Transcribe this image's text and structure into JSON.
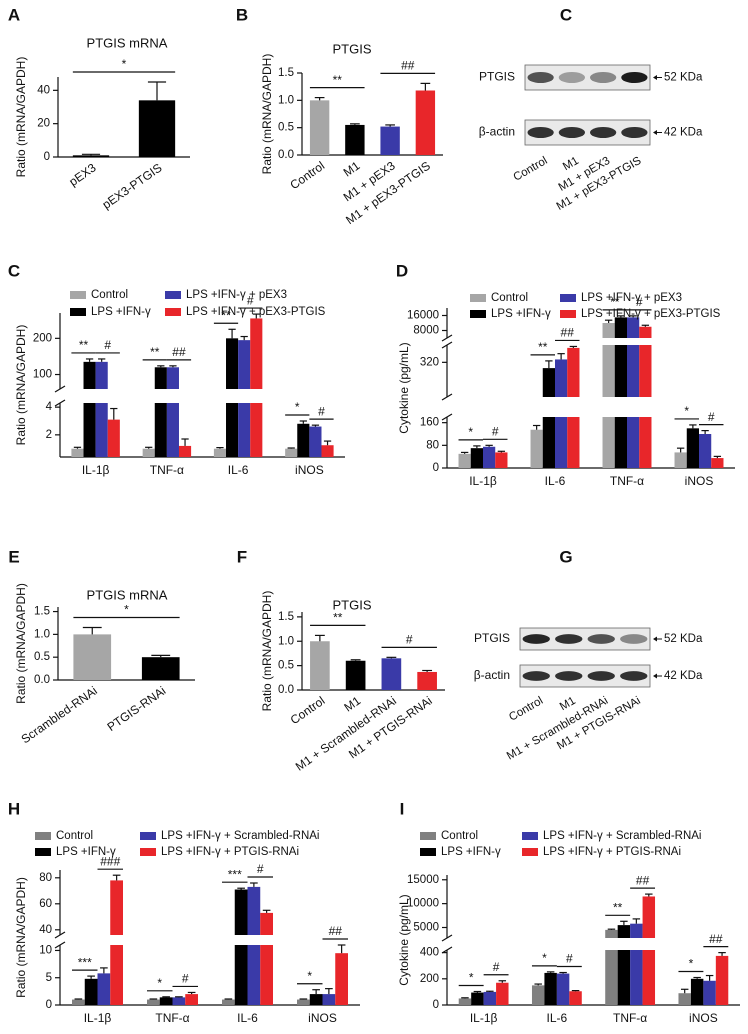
{
  "chart_data": [
    {
      "type": "bar",
      "panel": "A",
      "title": "PTGIS mRNA",
      "ylabel": "Ratio (mRNA/GAPDH)",
      "categories": [
        "pEX3",
        "pEX3-PTGIS"
      ],
      "values": [
        1,
        34
      ],
      "errors": [
        0.6,
        11
      ],
      "colors": [
        "#000000",
        "#000000"
      ],
      "ylim": [
        0,
        48
      ],
      "yticks": [
        0,
        20,
        40
      ],
      "annotations": [
        "*"
      ]
    },
    {
      "type": "bar",
      "panel": "B",
      "title": "PTGIS",
      "ylabel": "Ratio (mRNA/GAPDH)",
      "categories": [
        "Control",
        "M1",
        "M1 + pEX3",
        "M1 + pEX3-PTGIS"
      ],
      "values": [
        1.0,
        0.55,
        0.52,
        1.18
      ],
      "errors": [
        0.05,
        0.02,
        0.03,
        0.13
      ],
      "colors": [
        "#a6a6a6",
        "#000000",
        "#3a3aa8",
        "#e8262a"
      ],
      "ylim": [
        0,
        1.5
      ],
      "yticks": [
        {
          "value": 0,
          "label": "0.0"
        },
        {
          "value": 0.5,
          "label": "0.5"
        },
        {
          "value": 1,
          "label": "1.0"
        },
        {
          "value": 1.5,
          "label": "1.5"
        }
      ],
      "annotations": [
        "**",
        "##"
      ]
    },
    {
      "type": "blot",
      "panel": "C",
      "rows": [
        "PTGIS",
        "β-actin"
      ],
      "sizes": [
        "52 KDa",
        "42 KDa"
      ],
      "lanes": [
        "Control",
        "M1",
        "M1 + pEX3",
        "M1 + pEX3-PTGIS"
      ]
    },
    {
      "type": "grouped",
      "panel": "C",
      "ylabel": "Ratio (mRNA/GAPDH)",
      "categories": [
        "IL-1β",
        "TNF-α",
        "IL-6",
        "iNOS"
      ],
      "segments": [
        {
          "ylim": [
            0.4,
            4.3
          ],
          "yticks": [
            2,
            4
          ]
        },
        {
          "ylim": [
            60,
            270
          ],
          "yticks": [
            100,
            200
          ]
        }
      ],
      "series": [
        {
          "name": "Control",
          "color": "#a6a6a6",
          "values": [
            1,
            1,
            1,
            1
          ],
          "errors": [
            0.1,
            0.1,
            0.08,
            0.05
          ]
        },
        {
          "name": "LPS +IFN-γ",
          "color": "#000000",
          "values": [
            135,
            120,
            200,
            2.8
          ],
          "errors": [
            8,
            4,
            25,
            0.2
          ]
        },
        {
          "name": "LPS +IFN-γ + pEX3",
          "color": "#3a3aa8",
          "values": [
            135,
            120,
            195,
            2.6
          ],
          "errors": [
            8,
            4,
            10,
            0.1
          ]
        },
        {
          "name": "LPS +IFN-γ + pEX3-PTGIS",
          "color": "#e8262a",
          "values": [
            3.1,
            1.2,
            255,
            1.25
          ],
          "errors": [
            0.8,
            0.5,
            12,
            0.3
          ]
        }
      ],
      "significance": [
        [
          "**",
          "#"
        ],
        [
          "**",
          "##"
        ],
        [
          "**",
          "#"
        ],
        [
          "*",
          "#"
        ]
      ]
    },
    {
      "type": "grouped",
      "panel": "D",
      "ylabel": "Cytokine (pg/mL)",
      "categories": [
        "IL-1β",
        "IL-6",
        "TNF-α",
        "iNOS"
      ],
      "segments": [
        {
          "ylim": [
            0,
            180
          ],
          "yticks": [
            0,
            80,
            160
          ]
        },
        {
          "ylim": [
            200,
            380
          ],
          "yticks": [
            320
          ]
        },
        {
          "ylim": [
            4000,
            20000
          ],
          "yticks": [
            8000,
            16000
          ]
        }
      ],
      "series": [
        {
          "name": "Control",
          "color": "#a6a6a6",
          "values": [
            50,
            135,
            12000,
            55
          ],
          "errors": [
            5,
            15,
            1500,
            15
          ]
        },
        {
          "name": "LPS +IFN-γ",
          "color": "#000000",
          "values": [
            70,
            300,
            15000,
            140
          ],
          "errors": [
            8,
            25,
            800,
            12
          ]
        },
        {
          "name": "LPS +IFN-γ + pEX3",
          "color": "#3a3aa8",
          "values": [
            75,
            330,
            15000,
            120
          ],
          "errors": [
            5,
            20,
            800,
            12
          ]
        },
        {
          "name": "LPS +IFN-γ + pEX3-PTGIS",
          "color": "#e8262a",
          "values": [
            55,
            370,
            10000,
            35
          ],
          "errors": [
            4,
            5,
            800,
            6
          ]
        }
      ],
      "significance": [
        [
          "*",
          "#"
        ],
        [
          "**",
          "##"
        ],
        [
          "**",
          "#"
        ],
        [
          "*",
          "#"
        ]
      ]
    },
    {
      "type": "bar",
      "panel": "E",
      "title": "PTGIS mRNA",
      "ylabel": "Ratio (mRNA/GAPDH)",
      "categories": [
        "Scrambled-RNAi",
        "PTGIS-RNAi"
      ],
      "values": [
        1.0,
        0.5
      ],
      "errors": [
        0.15,
        0.04
      ],
      "colors": [
        "#a6a6a6",
        "#000000"
      ],
      "ylim": [
        0,
        1.6
      ],
      "yticks": [
        {
          "value": 0,
          "label": "0.0"
        },
        {
          "value": 0.5,
          "label": "0.5"
        },
        {
          "value": 1,
          "label": "1.0"
        },
        {
          "value": 1.5,
          "label": "1.5"
        }
      ],
      "annotations": [
        "*"
      ]
    },
    {
      "type": "bar",
      "panel": "F",
      "title": "PTGIS",
      "ylabel": "Ratio (mRNA/GAPDH)",
      "categories": [
        "Control",
        "M1",
        "M1 + Scrambled-RNAi",
        "M1 + PTGIS-RNAi"
      ],
      "values": [
        1.0,
        0.6,
        0.65,
        0.37
      ],
      "errors": [
        0.12,
        0.02,
        0.02,
        0.03
      ],
      "colors": [
        "#a6a6a6",
        "#000000",
        "#3a3aa8",
        "#e8262a"
      ],
      "ylim": [
        0,
        1.6
      ],
      "yticks": [
        {
          "value": 0,
          "label": "0.0"
        },
        {
          "value": 0.5,
          "label": "0.5"
        },
        {
          "value": 1,
          "label": "1.0"
        },
        {
          "value": 1.5,
          "label": "1.5"
        }
      ],
      "annotations": [
        "**",
        "#"
      ]
    },
    {
      "type": "blot",
      "panel": "G",
      "rows": [
        "PTGIS",
        "β-actin"
      ],
      "sizes": [
        "52 KDa",
        "42 KDa"
      ],
      "lanes": [
        "Control",
        "M1",
        "M1 + Scrambled-RNAi",
        "M1 + PTGIS-RNAi"
      ]
    },
    {
      "type": "grouped",
      "panel": "H",
      "ylabel": "Ratio (mRNA/GAPDH)",
      "categories": [
        "IL-1β",
        "TNF-α",
        "IL-6",
        "iNOS"
      ],
      "segments": [
        {
          "ylim": [
            0,
            11
          ],
          "yticks": [
            0,
            5,
            10
          ]
        },
        {
          "ylim": [
            36,
            86
          ],
          "yticks": [
            40,
            60,
            80
          ]
        }
      ],
      "series": [
        {
          "name": "Control",
          "color": "#808080",
          "values": [
            1,
            1,
            1,
            1
          ],
          "errors": [
            0.1,
            0.1,
            0.1,
            0.1
          ]
        },
        {
          "name": "LPS +IFN-γ",
          "color": "#000000",
          "values": [
            4.8,
            1.4,
            71,
            2
          ],
          "errors": [
            0.5,
            0.1,
            1,
            0.8
          ]
        },
        {
          "name": "LPS +IFN-γ + Scrambled-RNAi",
          "color": "#3a3aa8",
          "values": [
            5.8,
            1.4,
            73,
            2
          ],
          "errors": [
            1,
            0.1,
            3,
            1
          ]
        },
        {
          "name": "LPS +IFN-γ + PTGIS-RNAi",
          "color": "#e8262a",
          "values": [
            78,
            2,
            53,
            9.5
          ],
          "errors": [
            4,
            0.3,
            2,
            2
          ]
        }
      ],
      "significance": [
        [
          "***",
          "###"
        ],
        [
          "*",
          "#"
        ],
        [
          "***",
          "#"
        ],
        [
          "*",
          "##"
        ]
      ]
    },
    {
      "type": "grouped",
      "panel": "I",
      "ylabel": "Cytokine (pg/mL)",
      "categories": [
        "IL-1β",
        "IL-6",
        "TNF-α",
        "iNOS"
      ],
      "segments": [
        {
          "ylim": [
            0,
            420
          ],
          "yticks": [
            0,
            200,
            400
          ]
        },
        {
          "ylim": [
            2800,
            16000
          ],
          "yticks": [
            5000,
            10000,
            15000
          ]
        }
      ],
      "series": [
        {
          "name": "Control",
          "color": "#808080",
          "values": [
            50,
            150,
            4500,
            90
          ],
          "errors": [
            5,
            10,
            150,
            30
          ]
        },
        {
          "name": "LPS +IFN-γ",
          "color": "#000000",
          "values": [
            95,
            245,
            5500,
            200
          ],
          "errors": [
            8,
            8,
            800,
            10
          ]
        },
        {
          "name": "LPS +IFN-γ + Scrambled-RNAi",
          "color": "#3a3aa8",
          "values": [
            100,
            240,
            5800,
            185
          ],
          "errors": [
            5,
            8,
            1000,
            40
          ]
        },
        {
          "name": "LPS +IFN-γ + PTGIS-RNAi",
          "color": "#e8262a",
          "values": [
            170,
            105,
            11500,
            375
          ],
          "errors": [
            15,
            5,
            500,
            25
          ]
        }
      ],
      "significance": [
        [
          "*",
          "#"
        ],
        [
          "*",
          "#"
        ],
        [
          "**",
          "##"
        ],
        [
          "*",
          "##"
        ]
      ]
    }
  ]
}
